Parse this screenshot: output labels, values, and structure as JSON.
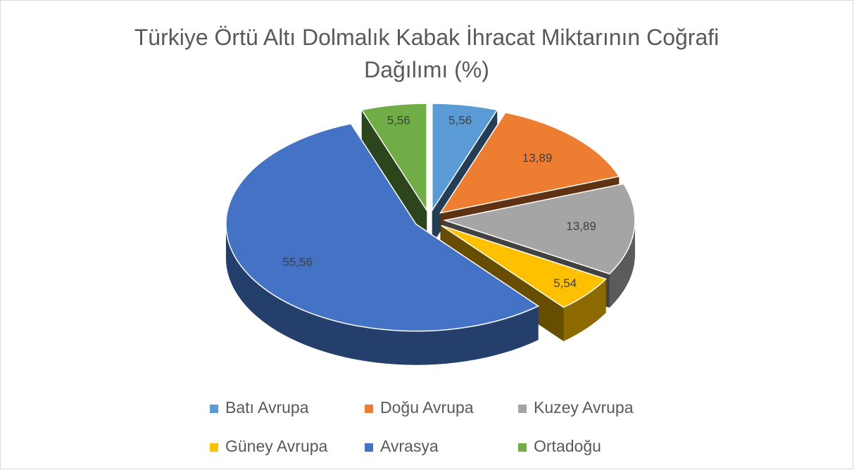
{
  "chart_data": {
    "type": "pie",
    "title": "Türkiye Örtü Altı Dolmalık Kabak İhracat Miktarının Coğrafi Dağılımı (%)",
    "categories": [
      "Batı Avrupa",
      "Doğu Avrupa",
      "Kuzey Avrupa",
      "Güney Avrupa",
      "Avrasya",
      "Ortadoğu"
    ],
    "values": [
      5.56,
      13.89,
      13.89,
      5.54,
      55.56,
      5.56
    ],
    "value_labels": [
      "5,56",
      "13,89",
      "13,89",
      "5,54",
      "55,56",
      "5,56"
    ],
    "colors": [
      "#5b9bd5",
      "#ed7d31",
      "#a5a5a5",
      "#ffc000",
      "#4472c4",
      "#70ad47"
    ],
    "legend": "bottom"
  }
}
